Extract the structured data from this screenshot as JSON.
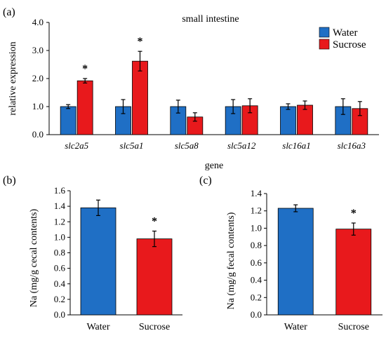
{
  "chart_data": [
    {
      "panel": "(a)",
      "type": "bar",
      "title": "small intestine",
      "xlabel": "gene",
      "ylabel": "relative expression",
      "ylim": [
        0,
        4.0
      ],
      "yticks": [
        "0.0",
        "1.0",
        "2.0",
        "3.0",
        "4.0"
      ],
      "categories": [
        "slc2a5",
        "slc5a1",
        "slc5a8",
        "slc5a12",
        "slc16a1",
        "slc16a3"
      ],
      "series": [
        {
          "name": "Water",
          "color": "#1f6fc5",
          "values": [
            1.0,
            1.0,
            1.0,
            1.0,
            1.0,
            1.0
          ],
          "errors": [
            0.07,
            0.25,
            0.23,
            0.25,
            0.1,
            0.28
          ]
        },
        {
          "name": "Sucrose",
          "color": "#e8191c",
          "values": [
            1.92,
            2.62,
            0.63,
            1.03,
            1.05,
            0.93
          ],
          "errors": [
            0.08,
            0.35,
            0.15,
            0.25,
            0.15,
            0.25
          ]
        }
      ],
      "significance": [
        "*",
        "*",
        "",
        "",
        "",
        ""
      ],
      "legend_position": "top-right",
      "grid": false
    },
    {
      "panel": "(b)",
      "type": "bar",
      "title": "",
      "xlabel": "",
      "ylabel": "Na (mg/g cecal contents)",
      "ylim": [
        0,
        1.6
      ],
      "yticks": [
        "0.0",
        "0.2",
        "0.4",
        "0.6",
        "0.8",
        "1.0",
        "1.2",
        "1.4",
        "1.6"
      ],
      "categories": [
        "Water",
        "Sucrose"
      ],
      "values": [
        1.38,
        0.98
      ],
      "errors": [
        0.1,
        0.1
      ],
      "colors": [
        "#1f6fc5",
        "#e8191c"
      ],
      "significance": [
        "",
        "*"
      ],
      "grid": false
    },
    {
      "panel": "(c)",
      "type": "bar",
      "title": "",
      "xlabel": "",
      "ylabel": "Na (mg/g fecal contents)",
      "ylim": [
        0,
        1.4
      ],
      "yticks": [
        "0.0",
        "0.2",
        "0.4",
        "0.6",
        "0.8",
        "1.0",
        "1.2",
        "1.4"
      ],
      "categories": [
        "Water",
        "Sucrose"
      ],
      "values": [
        1.23,
        0.99
      ],
      "errors": [
        0.04,
        0.07
      ],
      "colors": [
        "#1f6fc5",
        "#e8191c"
      ],
      "significance": [
        "",
        "*"
      ],
      "grid": false
    }
  ]
}
